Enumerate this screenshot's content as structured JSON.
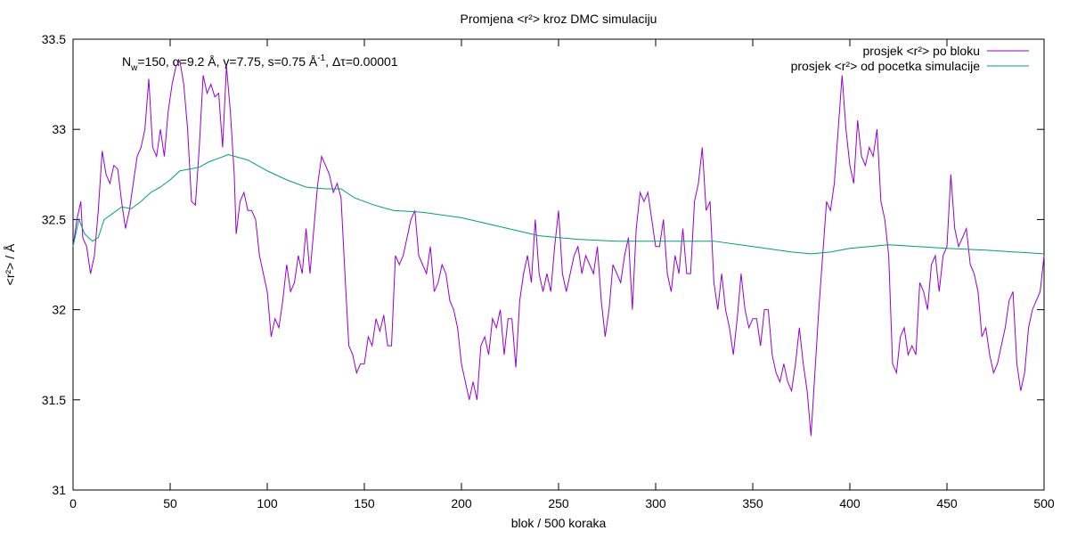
{
  "chart_data": {
    "type": "line",
    "title": "Promjena <r²> kroz DMC simulaciju",
    "annotation": [
      "N",
      "w",
      "=150, α=9.2 Å, γ=7.75, s=0.75 Å",
      "-1",
      ", Δτ=0.00001"
    ],
    "x_label": "blok / 500 koraka",
    "y_label": "<r²> / Å",
    "xlim": [
      0,
      500
    ],
    "xticks": [
      0,
      50,
      100,
      150,
      200,
      250,
      300,
      350,
      400,
      450,
      500
    ],
    "ylim": [
      31,
      33.5
    ],
    "yticks": [
      31,
      31.5,
      32,
      32.5,
      33,
      33.5
    ],
    "grid": false,
    "legend": "top-right",
    "series": [
      {
        "name": "prosjek <r²> po bloku",
        "color": "#9400d3",
        "x": [
          0,
          2,
          4,
          5,
          7,
          9,
          11,
          13,
          15,
          17,
          19,
          21,
          23,
          25,
          27,
          29,
          31,
          33,
          35,
          37,
          39,
          41,
          43,
          45,
          47,
          49,
          51,
          53,
          55,
          57,
          59,
          61,
          63,
          65,
          67,
          69,
          71,
          73,
          75,
          77,
          79,
          81,
          83,
          84,
          86,
          88,
          90,
          92,
          94,
          96,
          98,
          100,
          102,
          104,
          106,
          108,
          110,
          112,
          114,
          116,
          118,
          120,
          122,
          124,
          126,
          128,
          130,
          132,
          134,
          136,
          138,
          140,
          142,
          144,
          146,
          148,
          150,
          152,
          154,
          156,
          158,
          160,
          162,
          164,
          166,
          168,
          170,
          172,
          174,
          176,
          178,
          180,
          182,
          184,
          186,
          188,
          190,
          192,
          194,
          196,
          198,
          200,
          202,
          204,
          206,
          208,
          210,
          212,
          214,
          216,
          218,
          220,
          222,
          224,
          226,
          228,
          230,
          232,
          234,
          236,
          238,
          240,
          242,
          244,
          246,
          248,
          250,
          252,
          254,
          256,
          258,
          260,
          262,
          264,
          266,
          268,
          270,
          272,
          274,
          276,
          278,
          280,
          282,
          284,
          286,
          288,
          290,
          292,
          294,
          296,
          298,
          300,
          302,
          304,
          306,
          308,
          310,
          312,
          314,
          316,
          318,
          320,
          322,
          324,
          326,
          328,
          330,
          332,
          334,
          336,
          338,
          340,
          342,
          344,
          346,
          348,
          350,
          352,
          354,
          356,
          358,
          360,
          362,
          364,
          366,
          368,
          370,
          372,
          374,
          376,
          378,
          380,
          382,
          384,
          386,
          388,
          390,
          392,
          394,
          396,
          398,
          400,
          402,
          404,
          406,
          408,
          410,
          412,
          414,
          416,
          418,
          420,
          422,
          424,
          426,
          428,
          430,
          432,
          434,
          436,
          438,
          440,
          442,
          444,
          446,
          448,
          450,
          452,
          454,
          456,
          458,
          460,
          462,
          464,
          466,
          468,
          470,
          472,
          474,
          476,
          478,
          480,
          482,
          484,
          486,
          488,
          490,
          492,
          494,
          496,
          498,
          500
        ],
        "values": [
          32.35,
          32.5,
          32.6,
          32.4,
          32.35,
          32.2,
          32.3,
          32.55,
          32.88,
          32.75,
          32.7,
          32.8,
          32.78,
          32.6,
          32.45,
          32.55,
          32.7,
          32.85,
          32.9,
          33.0,
          33.28,
          32.9,
          32.85,
          33.0,
          32.85,
          33.1,
          33.25,
          33.35,
          33.38,
          33.25,
          33.0,
          32.6,
          32.58,
          32.9,
          33.3,
          33.2,
          33.25,
          33.18,
          33.2,
          32.9,
          33.35,
          33.1,
          32.75,
          32.42,
          32.6,
          32.65,
          32.55,
          32.55,
          32.5,
          32.3,
          32.2,
          32.1,
          31.85,
          31.95,
          31.9,
          32.05,
          32.25,
          32.1,
          32.15,
          32.3,
          32.2,
          32.45,
          32.2,
          32.45,
          32.7,
          32.85,
          32.8,
          32.75,
          32.65,
          32.7,
          32.62,
          32.2,
          31.8,
          31.75,
          31.65,
          31.7,
          31.7,
          31.85,
          31.8,
          31.95,
          31.88,
          31.97,
          31.8,
          31.8,
          32.3,
          32.25,
          32.3,
          32.4,
          32.5,
          32.55,
          32.3,
          32.25,
          32.2,
          32.35,
          32.1,
          32.15,
          32.25,
          32.2,
          32.05,
          32.0,
          31.9,
          31.7,
          31.6,
          31.5,
          31.6,
          31.5,
          31.8,
          31.85,
          31.75,
          31.95,
          31.9,
          32.0,
          31.75,
          31.95,
          31.95,
          31.68,
          32.05,
          32.2,
          32.3,
          32.15,
          32.5,
          32.2,
          32.1,
          32.2,
          32.1,
          32.35,
          32.55,
          32.2,
          32.1,
          32.2,
          32.3,
          32.35,
          32.2,
          32.3,
          32.25,
          32.2,
          32.35,
          32.05,
          31.85,
          32.0,
          32.25,
          32.2,
          32.15,
          32.3,
          32.4,
          32.0,
          32.45,
          32.65,
          32.6,
          32.65,
          32.5,
          32.35,
          32.35,
          32.5,
          32.2,
          32.1,
          32.3,
          32.2,
          32.45,
          32.2,
          32.2,
          32.6,
          32.7,
          32.9,
          32.55,
          32.6,
          32.15,
          32.0,
          32.2,
          32.0,
          31.9,
          31.75,
          31.95,
          32.2,
          32.0,
          31.9,
          31.95,
          31.95,
          31.8,
          32.0,
          32.0,
          31.75,
          31.65,
          31.6,
          31.7,
          31.6,
          31.55,
          31.7,
          31.9,
          31.7,
          31.55,
          31.3,
          31.65,
          32.0,
          32.3,
          32.6,
          32.55,
          32.7,
          33.0,
          33.3,
          33.0,
          32.8,
          32.7,
          33.05,
          32.85,
          32.8,
          32.9,
          32.85,
          33.0,
          32.6,
          32.5,
          32.3,
          31.7,
          31.65,
          31.85,
          31.9,
          31.75,
          31.8,
          31.75,
          32.15,
          32.1,
          32.0,
          32.25,
          32.3,
          32.1,
          32.3,
          32.35,
          32.75,
          32.45,
          32.35,
          32.4,
          32.45,
          32.25,
          32.2,
          32.1,
          31.85,
          31.9,
          31.75,
          31.65,
          31.7,
          31.8,
          31.9,
          32.05,
          32.1,
          31.7,
          31.55,
          31.65,
          31.9,
          32.0,
          32.05,
          32.1,
          32.3
        ]
      },
      {
        "name": "prosjek <r²> od pocetka simulacije",
        "color": "#009e73",
        "x": [
          0,
          3,
          6,
          10,
          13,
          16,
          20,
          25,
          30,
          35,
          40,
          45,
          50,
          55,
          60,
          65,
          70,
          75,
          80,
          90,
          100,
          110,
          120,
          130,
          138,
          145,
          155,
          165,
          180,
          200,
          220,
          240,
          260,
          280,
          300,
          330,
          350,
          370,
          380,
          390,
          400,
          420,
          435,
          450,
          470,
          485,
          500
        ],
        "values": [
          32.35,
          32.5,
          32.42,
          32.38,
          32.4,
          32.5,
          32.53,
          32.57,
          32.56,
          32.6,
          32.65,
          32.68,
          32.72,
          32.77,
          32.78,
          32.79,
          32.82,
          32.84,
          32.86,
          32.83,
          32.77,
          32.72,
          32.68,
          32.67,
          32.67,
          32.62,
          32.58,
          32.55,
          32.54,
          32.51,
          32.46,
          32.41,
          32.39,
          32.38,
          32.38,
          32.38,
          32.35,
          32.32,
          32.31,
          32.32,
          32.34,
          32.36,
          32.35,
          32.34,
          32.33,
          32.32,
          32.31
        ]
      }
    ]
  }
}
